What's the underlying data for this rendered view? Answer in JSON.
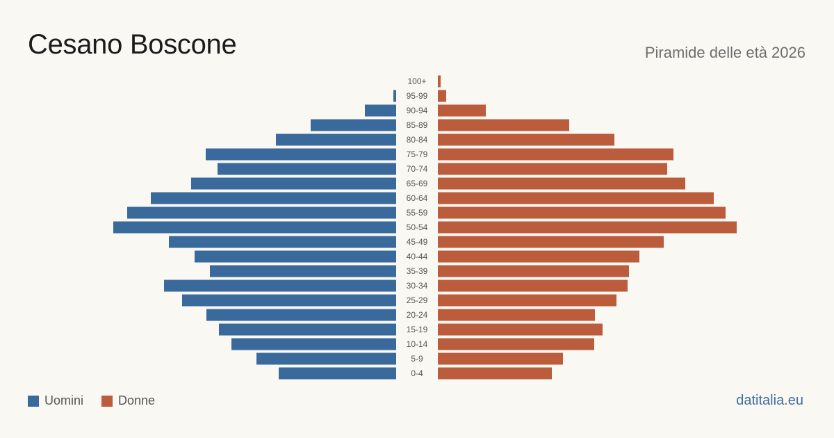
{
  "header": {
    "title": "Cesano Boscone",
    "subtitle": "Piramide delle età 2026"
  },
  "legend": {
    "men_label": "Uomini",
    "women_label": "Donne"
  },
  "footer": {
    "brand": "datitalia.eu"
  },
  "colors": {
    "men": "#3a6a9c",
    "women": "#bb5c3c",
    "label": "#555555"
  },
  "chart_data": {
    "type": "bar",
    "orientation": "horizontal-pyramid",
    "categories": [
      "100+",
      "95-99",
      "90-94",
      "85-89",
      "80-84",
      "75-79",
      "70-74",
      "65-69",
      "60-64",
      "55-59",
      "50-54",
      "45-49",
      "40-44",
      "35-39",
      "30-34",
      "25-29",
      "20-24",
      "15-19",
      "10-14",
      "5-9",
      "0-4"
    ],
    "series": [
      {
        "name": "Uomini",
        "values": [
          0,
          4,
          45,
          123,
          173,
          274,
          257,
          295,
          353,
          387,
          407,
          327,
          290,
          268,
          334,
          308,
          273,
          255,
          237,
          201,
          169
        ]
      },
      {
        "name": "Donne",
        "values": [
          4,
          12,
          69,
          189,
          254,
          339,
          330,
          356,
          397,
          414,
          430,
          325,
          290,
          275,
          273,
          257,
          226,
          237,
          225,
          180,
          164
        ]
      }
    ],
    "xlim": [
      0,
      430
    ],
    "grid": false,
    "legend_position": "bottom-left"
  }
}
